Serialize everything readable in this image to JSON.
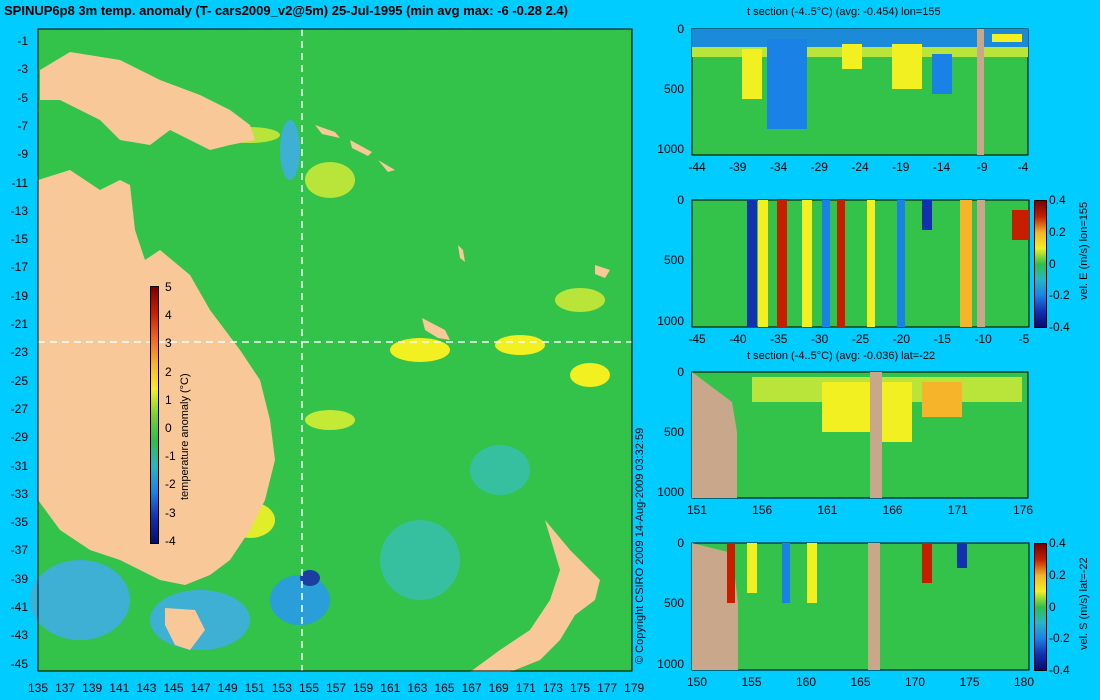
{
  "title": "SPINUP6p8 3m temp. anomaly (T- cars2009_v2@5m) 25-Jul-1995 (min avg max: -6 -0.28 2.4)",
  "copyright": "© Copyright CSIRO 2009   14-Aug-2009 03:32:59",
  "colors": {
    "background": "#00ccff",
    "land": "#f9c899",
    "section_land": "#c8a78a",
    "ocean_base": "#33c24a",
    "guide_line": "#ffffff"
  },
  "map": {
    "lon_labels": [
      "135",
      "137",
      "139",
      "141",
      "143",
      "145",
      "147",
      "149",
      "151",
      "153",
      "155",
      "157",
      "159",
      "161",
      "163",
      "165",
      "167",
      "169",
      "171",
      "173",
      "175",
      "177",
      "179"
    ],
    "lat_labels": [
      "-1",
      "-3",
      "-5",
      "-7",
      "-9",
      "-11",
      "-13",
      "-15",
      "-17",
      "-19",
      "-21",
      "-23",
      "-25",
      "-27",
      "-29",
      "-31",
      "-33",
      "-35",
      "-37",
      "-39",
      "-41",
      "-43",
      "-45"
    ],
    "colorbar": {
      "label": "temperature anomaly (°C)",
      "ticks": [
        "5",
        "4",
        "3",
        "2",
        "1",
        "0",
        "-1",
        "-2",
        "-3",
        "-4"
      ],
      "range": [
        -4,
        5
      ]
    },
    "section_lon": 155,
    "section_lat": -22
  },
  "panels": [
    {
      "id": "t-section-lon",
      "title": "t section (-4..5°C) (avg: -0.454) lon=155",
      "x_ticks": [
        "-44",
        "-39",
        "-34",
        "-29",
        "-24",
        "-19",
        "-14",
        "-9",
        "-4"
      ],
      "y_ticks": [
        "0",
        "500",
        "1000"
      ],
      "colorbar": null
    },
    {
      "id": "vel-e-section-lon",
      "title": "",
      "x_ticks": [
        "-45",
        "-40",
        "-35",
        "-30",
        "-25",
        "-20",
        "-15",
        "-10",
        "-5"
      ],
      "y_ticks": [
        "0",
        "500",
        "1000"
      ],
      "colorbar": {
        "label": "vel. E (m/s) lon=155",
        "ticks": [
          "0.4",
          "0.2",
          "0",
          "-0.2",
          "-0.4"
        ],
        "range": [
          -0.4,
          0.4
        ]
      }
    },
    {
      "id": "t-section-lat",
      "title": "t section (-4..5°C) (avg: -0.036) lat=-22",
      "x_ticks": [
        "151",
        "156",
        "161",
        "166",
        "171",
        "176"
      ],
      "y_ticks": [
        "0",
        "500",
        "1000"
      ],
      "colorbar": null
    },
    {
      "id": "vel-s-section-lat",
      "title": "",
      "x_ticks": [
        "150",
        "155",
        "160",
        "165",
        "170",
        "175",
        "180"
      ],
      "y_ticks": [
        "0",
        "500",
        "1000"
      ],
      "colorbar": {
        "label": "vel. S (m/s) lat=-22",
        "ticks": [
          "0.4",
          "0.2",
          "0",
          "-0.2",
          "-0.4"
        ],
        "range": [
          -0.4,
          0.4
        ]
      }
    }
  ]
}
